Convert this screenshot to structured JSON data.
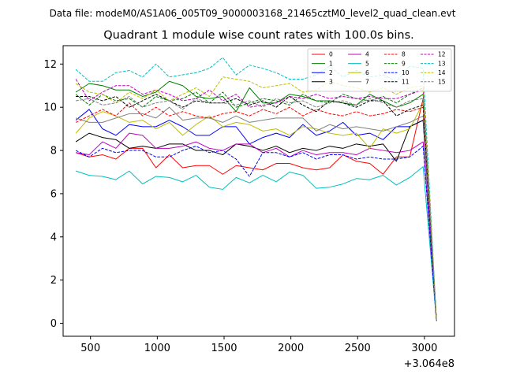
{
  "figure": {
    "suptitle": "Data file: modeM0/AS1A06_005T09_9000003168_21465cztM0_level2_quad_clean.evt"
  },
  "chart_data": {
    "type": "line",
    "title": "Quadrant 1 module wise count rates with 100.0s bins.",
    "xlabel": "",
    "ylabel": "",
    "x_offset_label": "+3.064e8",
    "xlim": [
      295,
      3225
    ],
    "ylim": [
      -0.6,
      12.85
    ],
    "xticks": [
      500,
      1000,
      1500,
      2000,
      2500,
      3000
    ],
    "yticks": [
      0,
      2,
      4,
      6,
      8,
      10,
      12
    ],
    "grid": false,
    "legend": {
      "placement": "top-right",
      "columns": 4
    },
    "x": [
      390,
      490,
      590,
      690,
      790,
      890,
      990,
      1090,
      1190,
      1290,
      1390,
      1490,
      1590,
      1690,
      1790,
      1890,
      1990,
      2090,
      2190,
      2290,
      2390,
      2490,
      2590,
      2690,
      2790,
      2890,
      2990,
      3090
    ],
    "series": [
      {
        "name": "0",
        "color": "#ff0000",
        "dash": "solid",
        "values": [
          7.9,
          7.7,
          7.8,
          7.6,
          8.1,
          8.1,
          7.2,
          7.8,
          7.2,
          7.3,
          7.3,
          6.9,
          7.3,
          7.2,
          7.1,
          7.4,
          7.4,
          7.2,
          7.1,
          7.2,
          7.8,
          7.5,
          7.4,
          6.9,
          7.7,
          7.7,
          10.4,
          0.1
        ]
      },
      {
        "name": "1",
        "color": "#008000",
        "dash": "solid",
        "values": [
          10.7,
          11.1,
          11.0,
          10.8,
          10.8,
          10.5,
          10.7,
          11.2,
          11.0,
          10.5,
          10.4,
          10.5,
          9.8,
          10.9,
          10.2,
          10.2,
          10.6,
          10.5,
          10.3,
          10.3,
          10.2,
          10.1,
          10.6,
          10.3,
          10.0,
          10.2,
          10.6,
          0.15
        ]
      },
      {
        "name": "2",
        "color": "#0000ff",
        "dash": "solid",
        "values": [
          9.4,
          9.9,
          9.0,
          8.7,
          9.2,
          9.1,
          9.1,
          9.4,
          9.1,
          8.7,
          8.7,
          9.1,
          9.1,
          8.3,
          8.6,
          8.8,
          8.6,
          9.2,
          8.7,
          8.9,
          9.3,
          8.7,
          8.8,
          8.5,
          9.1,
          9.1,
          9.4,
          0.1
        ]
      },
      {
        "name": "3",
        "color": "#000000",
        "dash": "solid",
        "values": [
          8.4,
          8.8,
          8.6,
          8.5,
          8.1,
          8.2,
          8.1,
          8.3,
          8.3,
          8.0,
          8.0,
          7.8,
          8.3,
          8.2,
          8.0,
          8.2,
          7.9,
          8.1,
          8.0,
          8.2,
          8.1,
          8.3,
          8.2,
          8.3,
          7.5,
          9.1,
          9.4,
          0.1
        ]
      },
      {
        "name": "4",
        "color": "#bf00bf",
        "dash": "solid",
        "values": [
          7.9,
          7.8,
          8.4,
          8.1,
          8.8,
          8.7,
          8.1,
          8.1,
          8.2,
          8.4,
          8.1,
          8.0,
          8.3,
          8.3,
          7.9,
          8.1,
          7.7,
          8.0,
          7.8,
          7.9,
          7.9,
          7.8,
          8.1,
          8.0,
          7.9,
          8.0,
          8.4,
          0.1
        ]
      },
      {
        "name": "5",
        "color": "#00bfbf",
        "dash": "solid",
        "values": [
          7.05,
          6.85,
          6.8,
          6.65,
          7.05,
          6.45,
          6.8,
          6.75,
          6.55,
          6.85,
          6.3,
          6.2,
          6.75,
          6.5,
          6.85,
          6.55,
          7.0,
          6.85,
          6.25,
          6.3,
          6.45,
          6.7,
          6.65,
          6.85,
          6.4,
          6.75,
          7.25,
          0.1
        ]
      },
      {
        "name": "6",
        "color": "#bfbf00",
        "dash": "solid",
        "values": [
          8.8,
          9.5,
          9.8,
          9.6,
          9.3,
          9.4,
          9.0,
          9.3,
          8.7,
          9.2,
          9.6,
          9.1,
          9.3,
          9.2,
          8.9,
          9.0,
          8.7,
          9.1,
          9.0,
          8.8,
          8.7,
          8.8,
          8.1,
          9.0,
          8.8,
          9.0,
          10.2,
          0.1
        ]
      },
      {
        "name": "7",
        "color": "#808080",
        "dash": "solid",
        "values": [
          9.5,
          9.3,
          9.3,
          9.5,
          9.7,
          9.7,
          9.5,
          10.0,
          9.4,
          9.5,
          9.5,
          9.3,
          9.6,
          9.3,
          9.4,
          9.5,
          9.5,
          9.5,
          8.9,
          9.2,
          9.0,
          9.1,
          9.0,
          8.9,
          9.1,
          9.3,
          9.6,
          0.1
        ]
      },
      {
        "name": "8",
        "color": "#ff0000",
        "dash": "dashed",
        "values": [
          9.3,
          9.6,
          9.9,
          9.6,
          10.2,
          9.6,
          10.0,
          9.6,
          9.8,
          9.6,
          9.5,
          9.7,
          9.8,
          9.6,
          9.9,
          9.7,
          10.0,
          9.6,
          9.9,
          9.7,
          9.6,
          9.8,
          9.6,
          9.7,
          9.9,
          9.8,
          10.0,
          0.1
        ]
      },
      {
        "name": "9",
        "color": "#008000",
        "dash": "dashed",
        "values": [
          10.6,
          10.1,
          10.6,
          10.3,
          10.4,
          10.0,
          10.5,
          10.3,
          10.4,
          10.7,
          10.2,
          10.7,
          10.0,
          10.2,
          10.4,
          10.3,
          10.1,
          10.6,
          10.3,
          10.2,
          10.6,
          10.4,
          10.3,
          10.5,
          10.2,
          10.6,
          10.9,
          0.1
        ]
      },
      {
        "name": "10",
        "color": "#0000ff",
        "dash": "dashed",
        "values": [
          8.0,
          7.7,
          8.1,
          7.9,
          8.0,
          8.0,
          7.7,
          7.7,
          8.0,
          8.2,
          7.9,
          8.0,
          7.6,
          6.8,
          7.9,
          7.9,
          7.7,
          7.9,
          7.6,
          7.8,
          7.8,
          7.6,
          7.7,
          7.6,
          7.6,
          7.7,
          8.2,
          0.1
        ]
      },
      {
        "name": "11",
        "color": "#000000",
        "dash": "dashed",
        "values": [
          10.5,
          10.5,
          10.3,
          10.5,
          10.0,
          10.3,
          10.6,
          10.3,
          10.0,
          10.3,
          10.2,
          10.2,
          10.4,
          10.1,
          10.3,
          10.0,
          10.5,
          10.1,
          9.8,
          10.3,
          10.2,
          10.0,
          10.3,
          10.3,
          9.6,
          9.9,
          10.1,
          0.1
        ]
      },
      {
        "name": "12",
        "color": "#bf00bf",
        "dash": "dashed",
        "values": [
          11.3,
          10.3,
          10.7,
          11.0,
          11.0,
          10.6,
          10.8,
          10.6,
          10.3,
          10.4,
          10.8,
          10.3,
          10.6,
          10.0,
          10.1,
          10.2,
          10.5,
          10.4,
          10.6,
          10.4,
          10.5,
          10.4,
          10.5,
          10.4,
          10.4,
          10.6,
          10.8,
          0.1
        ]
      },
      {
        "name": "13",
        "color": "#00bfbf",
        "dash": "dashed",
        "values": [
          11.75,
          11.2,
          11.2,
          11.6,
          11.7,
          11.4,
          12.0,
          11.4,
          11.5,
          11.6,
          11.8,
          12.3,
          11.5,
          11.95,
          11.8,
          11.6,
          11.3,
          11.3,
          11.5,
          11.9,
          11.4,
          11.7,
          11.4,
          11.5,
          11.2,
          11.9,
          11.8,
          0.1
        ]
      },
      {
        "name": "14",
        "color": "#bfbf00",
        "dash": "dashed",
        "values": [
          11.1,
          10.7,
          10.6,
          10.2,
          10.7,
          10.4,
          10.8,
          10.3,
          10.6,
          10.9,
          10.5,
          11.4,
          11.3,
          11.2,
          10.9,
          11.0,
          11.1,
          10.7,
          10.8,
          11.2,
          11.0,
          10.9,
          10.7,
          10.9,
          10.6,
          10.9,
          11.0,
          0.1
        ]
      },
      {
        "name": "15",
        "color": "#808080",
        "dash": "dashed",
        "values": [
          10.3,
          10.4,
          10.1,
          10.2,
          10.5,
          10.0,
          10.2,
          10.3,
          9.9,
          10.4,
          10.2,
          10.2,
          10.1,
          10.3,
          10.0,
          10.4,
          10.2,
          10.3,
          10.0,
          10.2,
          10.3,
          10.1,
          10.4,
          10.2,
          10.0,
          10.3,
          10.4,
          0.1
        ]
      }
    ]
  }
}
